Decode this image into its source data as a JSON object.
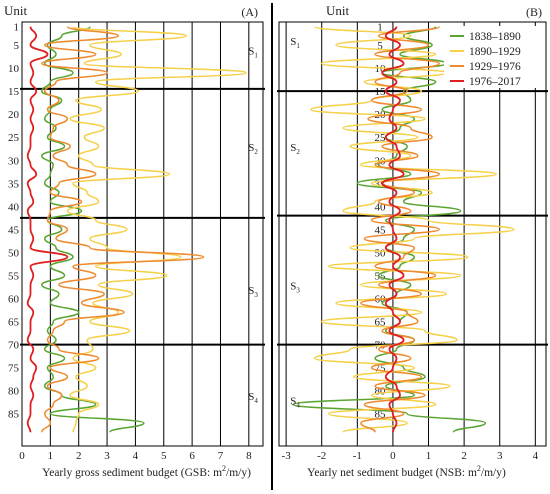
{
  "chart_data": [
    {
      "type": "line",
      "orientation": "vertical",
      "panel_label": "(A)",
      "y_label": "Unit",
      "x_label": "Yearly gross sediment budget (GSB: m",
      "x_label_sup": "2",
      "x_label_tail": "/m/y)",
      "x_ticks": [
        0,
        1,
        2,
        3,
        4,
        5,
        6,
        7,
        8
      ],
      "xlim": [
        0,
        8.5
      ],
      "y_ticks": [
        1,
        5,
        10,
        15,
        20,
        25,
        30,
        35,
        40,
        45,
        50,
        55,
        60,
        65,
        70,
        75,
        80,
        85
      ],
      "ylim": [
        0,
        92
      ],
      "grid": "vertical",
      "segments": [
        {
          "label": "S",
          "sub": "1",
          "unit": 7
        },
        {
          "label": "S",
          "sub": "2",
          "unit": 28
        },
        {
          "label": "S",
          "sub": "3",
          "unit": 59
        },
        {
          "label": "S",
          "sub": "4",
          "unit": 82
        }
      ],
      "boundaries": [
        14.5,
        42.5,
        70
      ],
      "units": [
        1,
        3,
        5,
        7,
        9,
        11,
        13,
        15,
        17,
        19,
        21,
        23,
        25,
        27,
        29,
        31,
        33,
        35,
        37,
        39,
        41,
        43,
        45,
        47,
        49,
        51,
        53,
        55,
        57,
        59,
        61,
        63,
        65,
        67,
        69,
        71,
        73,
        75,
        77,
        79,
        81,
        83,
        85,
        87,
        89
      ],
      "series": [
        {
          "name": "1838–1890",
          "values": [
            2.4,
            1.4,
            0.9,
            1.2,
            0.8,
            1.8,
            1.0,
            0.7,
            1.4,
            1.0,
            0.8,
            1.2,
            0.9,
            1.5,
            0.7,
            1.1,
            1.0,
            0.8,
            1.3,
            1.0,
            2.1,
            0.9,
            1.4,
            0.8,
            1.2,
            1.8,
            1.0,
            1.5,
            0.7,
            1.3,
            1.0,
            2.0,
            1.1,
            0.9,
            1.2,
            0.8,
            1.5,
            0.9,
            1.1,
            0.8,
            1.4,
            2.6,
            1.0,
            4.3,
            3.1
          ]
        },
        {
          "name": "1890–1929",
          "values": [
            1.8,
            5.8,
            2.4,
            3.5,
            2.2,
            7.9,
            2.6,
            4.1,
            1.9,
            2.8,
            1.7,
            2.9,
            2.2,
            2.7,
            2.0,
            2.5,
            5.2,
            1.8,
            2.3,
            2.7,
            1.6,
            2.6,
            3.7,
            2.4,
            3.0,
            5.6,
            2.6,
            5.1,
            2.7,
            3.9,
            2.5,
            3.4,
            2.4,
            3.8,
            2.3,
            2.5,
            1.8,
            2.6,
            1.9,
            2.3,
            1.7,
            2.7,
            2.0,
            1.9,
            1.8
          ]
        },
        {
          "name": "1929–1976",
          "values": [
            1.6,
            3.4,
            0.8,
            2.6,
            0.7,
            3.0,
            1.2,
            0.8,
            1.3,
            0.9,
            1.6,
            1.1,
            1.0,
            1.7,
            1.1,
            1.6,
            2.6,
            1.3,
            1.0,
            2.1,
            1.0,
            0.9,
            1.6,
            1.2,
            2.4,
            6.4,
            1.8,
            2.6,
            1.3,
            2.9,
            2.1,
            3.6,
            1.5,
            1.1,
            0.9,
            1.3,
            2.7,
            1.0,
            1.6,
            0.9,
            1.4,
            1.1,
            0.8,
            1.0,
            0.7
          ]
        },
        {
          "name": "1976–2017",
          "values": [
            0.3,
            0.5,
            0.3,
            0.9,
            0.3,
            0.4,
            0.3,
            0.5,
            0.3,
            0.4,
            0.3,
            0.4,
            0.3,
            0.3,
            0.2,
            0.3,
            0.5,
            0.2,
            0.3,
            0.4,
            0.2,
            0.3,
            0.3,
            0.4,
            0.3,
            1.6,
            0.3,
            0.4,
            0.3,
            0.3,
            0.2,
            0.4,
            0.3,
            0.3,
            0.2,
            0.4,
            0.3,
            0.5,
            0.4,
            0.3,
            0.4,
            0.3,
            0.3,
            0.2,
            0.3
          ]
        }
      ]
    },
    {
      "type": "line",
      "orientation": "vertical",
      "panel_label": "(B)",
      "y_label": "Unit",
      "x_label": "Yearly net sediment budget (NSB: m",
      "x_label_sup": "2",
      "x_label_tail": "/m/y)",
      "x_ticks": [
        -3,
        -2,
        -1,
        0,
        1,
        2,
        3,
        4
      ],
      "xlim": [
        -3.2,
        4.3
      ],
      "y_ticks": [
        1,
        5,
        10,
        15,
        20,
        25,
        30,
        35,
        40,
        45,
        50,
        55,
        60,
        65,
        70,
        75,
        80,
        85
      ],
      "ylim": [
        0,
        92
      ],
      "grid": "vertical",
      "segments": [
        {
          "label": "S",
          "sub": "1",
          "unit": 5
        },
        {
          "label": "S",
          "sub": "2",
          "unit": 28
        },
        {
          "label": "S",
          "sub": "3",
          "unit": 58
        },
        {
          "label": "S",
          "sub": "4",
          "unit": 83
        }
      ],
      "boundaries": [
        15,
        42,
        70
      ],
      "units": [
        1,
        3,
        5,
        7,
        9,
        11,
        13,
        15,
        17,
        19,
        21,
        23,
        25,
        27,
        29,
        31,
        33,
        35,
        37,
        39,
        41,
        43,
        45,
        47,
        49,
        51,
        53,
        55,
        57,
        59,
        61,
        63,
        65,
        67,
        69,
        71,
        73,
        75,
        77,
        79,
        81,
        83,
        85,
        87,
        89
      ],
      "series": [
        {
          "name": "1838–1890",
          "values": [
            1.2,
            0.3,
            1.1,
            0.2,
            1.5,
            -0.3,
            1.2,
            0.3,
            0.5,
            -0.3,
            0.6,
            0.2,
            -0.2,
            0.4,
            0.1,
            -0.4,
            0.5,
            -1.0,
            0.8,
            0.3,
            1.9,
            -0.2,
            0.6,
            0.3,
            -0.2,
            0.6,
            0.2,
            -0.4,
            0.5,
            0.1,
            -0.3,
            0.4,
            0.2,
            -0.2,
            0.6,
            0.1,
            -0.5,
            0.3,
            0.9,
            -0.2,
            0.6,
            -2.8,
            0.4,
            2.6,
            1.7
          ]
        },
        {
          "name": "1890–1929",
          "values": [
            -2.2,
            0.5,
            -1.6,
            1.2,
            -2.0,
            1.5,
            -0.8,
            0.8,
            -0.6,
            -2.3,
            0.9,
            -1.4,
            0.7,
            -1.2,
            0.5,
            -0.9,
            2.9,
            -0.6,
            1.1,
            -0.5,
            -1.4,
            1.0,
            3.4,
            0.6,
            -1.2,
            2.1,
            -1.8,
            1.9,
            -0.9,
            1.5,
            -1.6,
            0.8,
            -2.0,
            0.9,
            1.8,
            -1.2,
            -2.2,
            0.6,
            -1.1,
            1.6,
            -0.6,
            1.2,
            -1.8,
            0.4,
            -1.4
          ]
        },
        {
          "name": "1929–1976",
          "values": [
            1.3,
            -0.4,
            1.0,
            -0.5,
            1.3,
            0.2,
            -0.5,
            0.4,
            -0.6,
            0.8,
            -0.7,
            0.5,
            1.1,
            -0.3,
            0.7,
            -0.5,
            1.3,
            -0.3,
            0.6,
            -0.4,
            0.5,
            -0.6,
            1.3,
            -0.8,
            0.6,
            0.3,
            -0.5,
            1.2,
            -0.4,
            0.8,
            -0.9,
            0.4,
            0.7,
            -0.3,
            0.6,
            -0.4,
            0.5,
            -0.6,
            0.8,
            -0.5,
            0.9,
            -0.8,
            0.3,
            -0.9,
            -0.5
          ]
        },
        {
          "name": "1976–2017",
          "values": [
            0.1,
            -0.2,
            0.2,
            -0.1,
            0.3,
            -0.3,
            0.1,
            -0.2,
            0.2,
            0.0,
            -0.1,
            0.1,
            -0.2,
            0.1,
            0.2,
            -0.1,
            0.3,
            -0.3,
            0.1,
            -0.1,
            0.2,
            -0.1,
            0.0,
            0.1,
            -0.2,
            0.2,
            0.0,
            0.3,
            -0.1,
            0.1,
            -0.2,
            0.0,
            0.2,
            -0.1,
            0.3,
            -0.1,
            0.1,
            0.0,
            -0.2,
            0.1,
            0.2,
            -0.1,
            0.0,
            0.1,
            0.0
          ]
        }
      ],
      "legend": "top-right"
    }
  ],
  "colors": {
    "1838–1890": "#5aa532",
    "1890–1929": "#f5d049",
    "1929–1976": "#ef8a2e",
    "1976–2017": "#e02020",
    "axis": "#000000",
    "grid": "#000000"
  }
}
